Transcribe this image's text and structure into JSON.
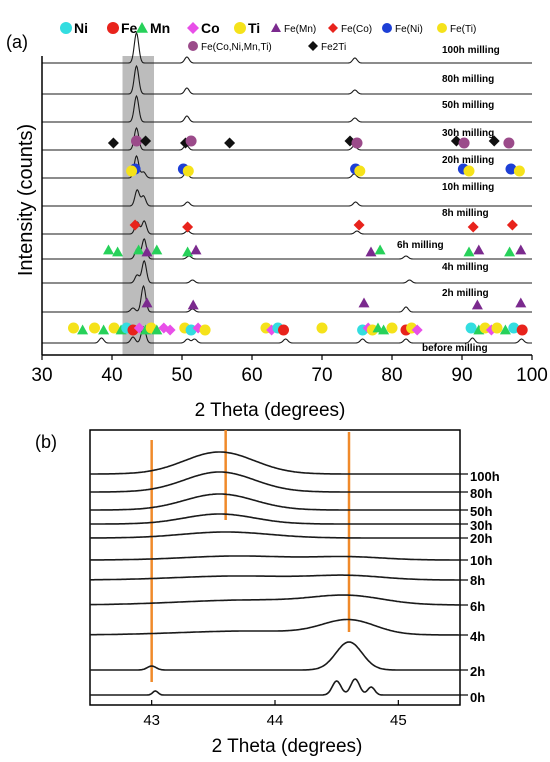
{
  "chart_data": [
    {
      "panel_label": "(a)",
      "type": "line",
      "xlabel": "2 Theta (degrees)",
      "ylabel": "Intensity (counts)",
      "xlim": [
        30,
        100
      ],
      "x_ticks": [
        "30",
        "40",
        "50",
        "60",
        "70",
        "80",
        "90",
        "100"
      ],
      "highlight_band_x": [
        41.5,
        46
      ],
      "legend_row1": [
        {
          "symbol": "circle",
          "color": "#33dde0",
          "label": "Ni"
        },
        {
          "symbol": "circle",
          "color": "#e8231c",
          "label": "Fe"
        },
        {
          "symbol": "triangle",
          "color": "#27d15a",
          "label": "Mn"
        },
        {
          "symbol": "diamond",
          "color": "#e84fe8",
          "label": "Co"
        },
        {
          "symbol": "circle",
          "color": "#f5e21a",
          "label": "Ti"
        },
        {
          "symbol": "triangle",
          "color": "#7b2a8e",
          "label": "Fe(Mn)"
        },
        {
          "symbol": "diamond",
          "color": "#e8231c",
          "label": "Fe(Co)"
        },
        {
          "symbol": "circle",
          "color": "#1d3fd6",
          "label": "Fe(Ni)"
        },
        {
          "symbol": "circle",
          "color": "#f5e21a",
          "label": "Fe(Ti)"
        }
      ],
      "legend_row2": [
        {
          "symbol": "circle",
          "color": "#9b4b8a",
          "label": "Fe(Co,Ni,Mn,Ti)"
        },
        {
          "symbol": "diamond",
          "color": "#111111",
          "label": "Fe2Ti"
        }
      ],
      "series": [
        {
          "name": "100h milling",
          "peaks": [
            [
              43.5,
              30
            ],
            [
              50.7,
              6
            ],
            [
              74.7,
              5
            ]
          ]
        },
        {
          "name": "80h milling",
          "peaks": [
            [
              43.5,
              28
            ],
            [
              50.7,
              6
            ],
            [
              74.7,
              4
            ]
          ]
        },
        {
          "name": "50h milling",
          "peaks": [
            [
              43.5,
              26
            ],
            [
              50.7,
              6
            ],
            [
              74.7,
              4
            ]
          ]
        },
        {
          "name": "30h milling",
          "peaks": [
            [
              43.5,
              22
            ],
            [
              50.6,
              5
            ],
            [
              74.6,
              4
            ]
          ]
        },
        {
          "name": "20h milling",
          "peaks": [
            [
              43.5,
              22
            ],
            [
              44.5,
              6
            ],
            [
              50.6,
              5
            ],
            [
              74.6,
              4
            ]
          ]
        },
        {
          "name": "10h milling",
          "peaks": [
            [
              43.6,
              16
            ],
            [
              44.5,
              10
            ],
            [
              50.8,
              4
            ],
            [
              74.8,
              4
            ]
          ]
        },
        {
          "name": "8h milling",
          "peaks": [
            [
              43.6,
              12
            ],
            [
              44.6,
              13
            ],
            [
              50.8,
              3
            ],
            [
              75.0,
              3
            ]
          ]
        },
        {
          "name": "6h milling",
          "peaks": [
            [
              43.6,
              10
            ],
            [
              44.6,
              20
            ],
            [
              51.0,
              3
            ],
            [
              82.0,
              3
            ]
          ]
        },
        {
          "name": "4h milling",
          "peaks": [
            [
              43.6,
              8
            ],
            [
              44.6,
              22
            ],
            [
              51.5,
              3
            ],
            [
              82.5,
              3
            ]
          ]
        },
        {
          "name": "2h milling",
          "peaks": [
            [
              43.0,
              4
            ],
            [
              44.5,
              26
            ],
            [
              51.5,
              3
            ],
            [
              82.0,
              5
            ]
          ]
        },
        {
          "name": "before milling",
          "peaks": [
            [
              38.5,
              5
            ],
            [
              43.0,
              6
            ],
            [
              44.5,
              16
            ],
            [
              50.8,
              4
            ],
            [
              51.8,
              4
            ],
            [
              64.8,
              4
            ],
            [
              75.8,
              4
            ],
            [
              82.0,
              4
            ],
            [
              91.5,
              5
            ],
            [
              98.5,
              4
            ]
          ]
        }
      ],
      "markers": [
        {
          "series": "30h milling",
          "items": [
            {
              "x": 43.5,
              "shape": "circle",
              "color": "#9b4b8a"
            },
            {
              "x": 40.2,
              "shape": "diamond",
              "color": "#111111"
            },
            {
              "x": 44.8,
              "shape": "diamond",
              "color": "#111111"
            },
            {
              "x": 50.5,
              "shape": "diamond",
              "color": "#111111"
            },
            {
              "x": 51.3,
              "shape": "circle",
              "color": "#9b4b8a"
            },
            {
              "x": 56.8,
              "shape": "diamond",
              "color": "#111111"
            },
            {
              "x": 74.0,
              "shape": "diamond",
              "color": "#111111"
            },
            {
              "x": 75.0,
              "shape": "circle",
              "color": "#9b4b8a"
            },
            {
              "x": 89.2,
              "shape": "diamond",
              "color": "#111111"
            },
            {
              "x": 90.3,
              "shape": "circle",
              "color": "#9b4b8a"
            },
            {
              "x": 94.6,
              "shape": "diamond",
              "color": "#111111"
            },
            {
              "x": 96.7,
              "shape": "circle",
              "color": "#9b4b8a"
            }
          ]
        },
        {
          "series": "20h milling",
          "items": [
            {
              "x": 43.3,
              "shape": "circle",
              "color": "#1d3fd6"
            },
            {
              "x": 42.8,
              "shape": "circle",
              "color": "#f5e21a"
            },
            {
              "x": 50.2,
              "shape": "circle",
              "color": "#1d3fd6"
            },
            {
              "x": 50.9,
              "shape": "circle",
              "color": "#f5e21a"
            },
            {
              "x": 74.8,
              "shape": "circle",
              "color": "#1d3fd6"
            },
            {
              "x": 75.4,
              "shape": "circle",
              "color": "#f5e21a"
            },
            {
              "x": 90.2,
              "shape": "circle",
              "color": "#1d3fd6"
            },
            {
              "x": 91.0,
              "shape": "circle",
              "color": "#f5e21a"
            },
            {
              "x": 97.0,
              "shape": "circle",
              "color": "#1d3fd6"
            },
            {
              "x": 98.2,
              "shape": "circle",
              "color": "#f5e21a"
            }
          ]
        },
        {
          "series": "8h milling",
          "items": [
            {
              "x": 43.3,
              "shape": "diamond",
              "color": "#e8231c"
            },
            {
              "x": 50.8,
              "shape": "diamond",
              "color": "#e8231c"
            },
            {
              "x": 75.3,
              "shape": "diamond",
              "color": "#e8231c"
            },
            {
              "x": 91.6,
              "shape": "diamond",
              "color": "#e8231c"
            },
            {
              "x": 97.2,
              "shape": "diamond",
              "color": "#e8231c"
            }
          ]
        },
        {
          "series": "6h milling",
          "items": [
            {
              "x": 39.5,
              "shape": "triangle",
              "color": "#27d15a"
            },
            {
              "x": 40.8,
              "shape": "triangle",
              "color": "#27d15a"
            },
            {
              "x": 43.8,
              "shape": "triangle",
              "color": "#27d15a"
            },
            {
              "x": 45.0,
              "shape": "triangle",
              "color": "#7b2a8e"
            },
            {
              "x": 46.4,
              "shape": "triangle",
              "color": "#27d15a"
            },
            {
              "x": 50.8,
              "shape": "triangle",
              "color": "#27d15a"
            },
            {
              "x": 52.0,
              "shape": "triangle",
              "color": "#7b2a8e"
            },
            {
              "x": 77.0,
              "shape": "triangle",
              "color": "#7b2a8e"
            },
            {
              "x": 78.3,
              "shape": "triangle",
              "color": "#27d15a"
            },
            {
              "x": 91.0,
              "shape": "triangle",
              "color": "#27d15a"
            },
            {
              "x": 92.4,
              "shape": "triangle",
              "color": "#7b2a8e"
            },
            {
              "x": 96.8,
              "shape": "triangle",
              "color": "#27d15a"
            },
            {
              "x": 98.4,
              "shape": "triangle",
              "color": "#7b2a8e"
            }
          ]
        },
        {
          "series": "2h milling",
          "items": [
            {
              "x": 45.0,
              "shape": "triangle",
              "color": "#7b2a8e"
            },
            {
              "x": 51.6,
              "shape": "triangle",
              "color": "#7b2a8e"
            },
            {
              "x": 76.0,
              "shape": "triangle",
              "color": "#7b2a8e"
            },
            {
              "x": 92.2,
              "shape": "triangle",
              "color": "#7b2a8e"
            },
            {
              "x": 98.4,
              "shape": "triangle",
              "color": "#7b2a8e"
            }
          ]
        },
        {
          "series": "before milling",
          "items": [
            {
              "x": 34.5,
              "shape": "circle",
              "color": "#f5e21a"
            },
            {
              "x": 35.8,
              "shape": "triangle",
              "color": "#27d15a"
            },
            {
              "x": 37.5,
              "shape": "circle",
              "color": "#f5e21a"
            },
            {
              "x": 38.8,
              "shape": "triangle",
              "color": "#27d15a"
            },
            {
              "x": 40.3,
              "shape": "circle",
              "color": "#f5e21a"
            },
            {
              "x": 41.3,
              "shape": "triangle",
              "color": "#27d15a"
            },
            {
              "x": 42.1,
              "shape": "circle",
              "color": "#33dde0"
            },
            {
              "x": 43.0,
              "shape": "circle",
              "color": "#e8231c"
            },
            {
              "x": 43.9,
              "shape": "diamond",
              "color": "#e84fe8"
            },
            {
              "x": 44.8,
              "shape": "triangle",
              "color": "#27d15a"
            },
            {
              "x": 45.6,
              "shape": "circle",
              "color": "#f5e21a"
            },
            {
              "x": 46.4,
              "shape": "triangle",
              "color": "#27d15a"
            },
            {
              "x": 47.4,
              "shape": "diamond",
              "color": "#e84fe8"
            },
            {
              "x": 48.3,
              "shape": "diamond",
              "color": "#e84fe8"
            },
            {
              "x": 50.4,
              "shape": "circle",
              "color": "#f5e21a"
            },
            {
              "x": 51.3,
              "shape": "circle",
              "color": "#33dde0"
            },
            {
              "x": 52.3,
              "shape": "diamond",
              "color": "#e84fe8"
            },
            {
              "x": 53.3,
              "shape": "circle",
              "color": "#f5e21a"
            },
            {
              "x": 62.0,
              "shape": "circle",
              "color": "#f5e21a"
            },
            {
              "x": 62.8,
              "shape": "diamond",
              "color": "#e84fe8"
            },
            {
              "x": 63.7,
              "shape": "circle",
              "color": "#33dde0"
            },
            {
              "x": 64.5,
              "shape": "circle",
              "color": "#e8231c"
            },
            {
              "x": 70.0,
              "shape": "circle",
              "color": "#f5e21a"
            },
            {
              "x": 75.8,
              "shape": "circle",
              "color": "#33dde0"
            },
            {
              "x": 76.6,
              "shape": "diamond",
              "color": "#e84fe8"
            },
            {
              "x": 77.2,
              "shape": "circle",
              "color": "#f5e21a"
            },
            {
              "x": 78.0,
              "shape": "triangle",
              "color": "#27d15a"
            },
            {
              "x": 78.8,
              "shape": "triangle",
              "color": "#27d15a"
            },
            {
              "x": 80.0,
              "shape": "circle",
              "color": "#f5e21a"
            },
            {
              "x": 82.0,
              "shape": "circle",
              "color": "#e8231c"
            },
            {
              "x": 82.8,
              "shape": "circle",
              "color": "#f5e21a"
            },
            {
              "x": 83.6,
              "shape": "diamond",
              "color": "#e84fe8"
            },
            {
              "x": 91.3,
              "shape": "circle",
              "color": "#33dde0"
            },
            {
              "x": 92.4,
              "shape": "triangle",
              "color": "#27d15a"
            },
            {
              "x": 93.3,
              "shape": "circle",
              "color": "#f5e21a"
            },
            {
              "x": 94.2,
              "shape": "diamond",
              "color": "#e84fe8"
            },
            {
              "x": 95.0,
              "shape": "circle",
              "color": "#f5e21a"
            },
            {
              "x": 96.2,
              "shape": "triangle",
              "color": "#27d15a"
            },
            {
              "x": 97.4,
              "shape": "circle",
              "color": "#33dde0"
            },
            {
              "x": 98.6,
              "shape": "circle",
              "color": "#e8231c"
            }
          ]
        }
      ]
    },
    {
      "panel_label": "(b)",
      "type": "line",
      "xlabel": "2 Theta (degrees)",
      "xlim": [
        42.5,
        45.5
      ],
      "x_ticks": [
        "43",
        "44",
        "45"
      ],
      "reference_lines_x": [
        43.0,
        43.6,
        44.6
      ],
      "series": [
        {
          "name": "100h",
          "peaks": [
            [
              43.55,
              22,
              0.4
            ]
          ]
        },
        {
          "name": "80h",
          "peaks": [
            [
              43.55,
              20,
              0.4
            ]
          ]
        },
        {
          "name": "50h",
          "peaks": [
            [
              43.55,
              16,
              0.4
            ]
          ]
        },
        {
          "name": "30h",
          "peaks": [
            [
              43.55,
              10,
              0.4
            ]
          ]
        },
        {
          "name": "20h",
          "peaks": [
            [
              43.6,
              6,
              0.5
            ]
          ]
        },
        {
          "name": "10h",
          "peaks": [
            [
              43.7,
              4,
              0.6
            ],
            [
              44.6,
              3,
              0.4
            ]
          ]
        },
        {
          "name": "8h",
          "peaks": [
            [
              43.7,
              4,
              0.7
            ],
            [
              44.6,
              4,
              0.4
            ]
          ]
        },
        {
          "name": "6h",
          "peaks": [
            [
              43.8,
              5,
              0.8
            ],
            [
              44.6,
              8,
              0.4
            ]
          ]
        },
        {
          "name": "4h",
          "peaks": [
            [
              43.8,
              4,
              0.8
            ],
            [
              44.6,
              14,
              0.3
            ]
          ]
        },
        {
          "name": "2h",
          "peaks": [
            [
              43.0,
              4,
              0.05
            ],
            [
              44.6,
              28,
              0.15
            ]
          ]
        },
        {
          "name": "0h",
          "peaks": [
            [
              43.03,
              4,
              0.03
            ],
            [
              44.5,
              14,
              0.05
            ],
            [
              44.65,
              16,
              0.05
            ],
            [
              44.78,
              8,
              0.04
            ]
          ]
        }
      ]
    }
  ]
}
